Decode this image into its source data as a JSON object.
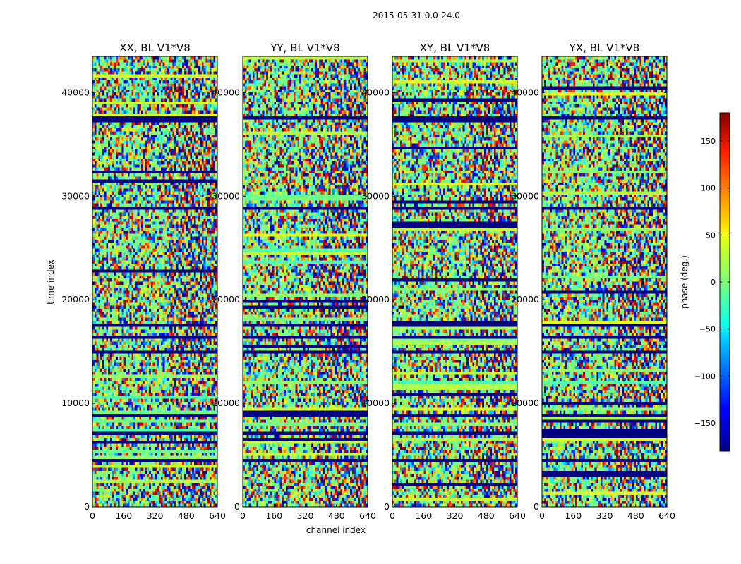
{
  "chart_data": {
    "type": "heatmap",
    "suptitle": "2015-05-31 0.0-24.0",
    "xlabel": "channel index",
    "ylabel": "time index",
    "xlim": [
      0,
      640
    ],
    "ylim": [
      0,
      43500
    ],
    "xticks": [
      "0",
      "160",
      "320",
      "480",
      "640"
    ],
    "yticks": [
      "0",
      "10000",
      "20000",
      "30000",
      "40000"
    ],
    "colormap": "jet",
    "colorbar": {
      "label": "phase (deg.)",
      "range": [
        -180,
        180
      ],
      "ticks": [
        "150",
        "100",
        "50",
        "0",
        "−50",
        "−100",
        "−150"
      ],
      "tick_values": [
        150,
        100,
        50,
        0,
        -50,
        -100,
        -150
      ]
    },
    "panels": [
      {
        "title": "XX, BL V1*V8",
        "show_xlabel": false,
        "show_ylabel": true
      },
      {
        "title": "YY, BL V1*V8",
        "show_xlabel": true,
        "show_ylabel": false
      },
      {
        "title": "XY, BL V1*V8",
        "show_xlabel": false,
        "show_ylabel": false
      },
      {
        "title": "YX, BL V1*V8",
        "show_xlabel": false,
        "show_ylabel": false
      }
    ],
    "flagged_time_bands": [
      37800,
      29000,
      17600,
      16500,
      15100,
      9100,
      7200,
      4600
    ],
    "grid": false
  }
}
